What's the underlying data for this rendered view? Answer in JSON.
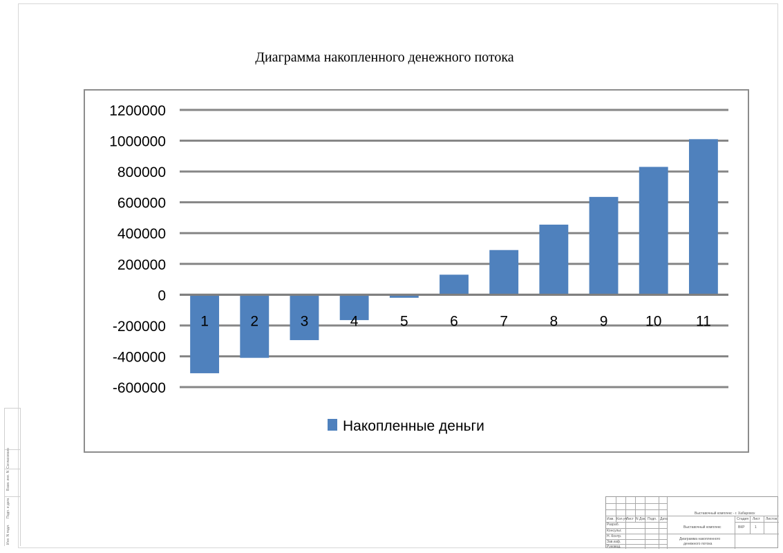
{
  "chart_data": {
    "type": "bar",
    "title": "Диаграмма накопленного денежного потока",
    "categories": [
      "1",
      "2",
      "3",
      "4",
      "5",
      "6",
      "7",
      "8",
      "9",
      "10",
      "11"
    ],
    "series": [
      {
        "name": "Накопленные деньги",
        "values": [
          -510000,
          -410000,
          -295000,
          -165000,
          -20000,
          130000,
          290000,
          455000,
          635000,
          830000,
          1010000
        ]
      }
    ],
    "ylim": [
      -600000,
      1200000
    ],
    "yticks": [
      "1200000",
      "1000000",
      "800000",
      "600000",
      "400000",
      "200000",
      "0",
      "-200000",
      "-400000",
      "-600000"
    ],
    "ytick_values": [
      1200000,
      1000000,
      800000,
      600000,
      400000,
      200000,
      0,
      -200000,
      -400000,
      -600000
    ],
    "grid": true,
    "legend_position": "bottom",
    "colors": {
      "bar": "#4f81bd",
      "grid": "#868686",
      "axis": "#7f7f7f",
      "text": "#000000"
    }
  },
  "title_block": {
    "project": "Выставочный комплекс - г. Хабаровск",
    "object": "Выставочный комплекс",
    "sheet_title_1": "Диаграмма накопленного",
    "sheet_title_2": "денежного потока",
    "stage_header": "Стадия",
    "sheet_header": "Лист",
    "sheets_header": "Листов",
    "stage": "ВКР",
    "sheet_no": "1",
    "col_izm": "Изм.",
    "col_kol": "Кол.уч",
    "col_list": "Лист",
    "col_doc": "N Док.",
    "col_sign": "Подп.",
    "col_date": "Дата",
    "row_razrab": "Разраб.",
    "row_konsult": "Консульт.",
    "row_nkontr": "Н. Контр.",
    "row_zavkaf": "Зав.каф.",
    "row_rukovod": "Руковод."
  },
  "side_stamp": {
    "f1": "Согласовано",
    "f2": "Инв. N подл.",
    "f3": "Подп. и дата",
    "f4": "Взам. инв. N"
  }
}
